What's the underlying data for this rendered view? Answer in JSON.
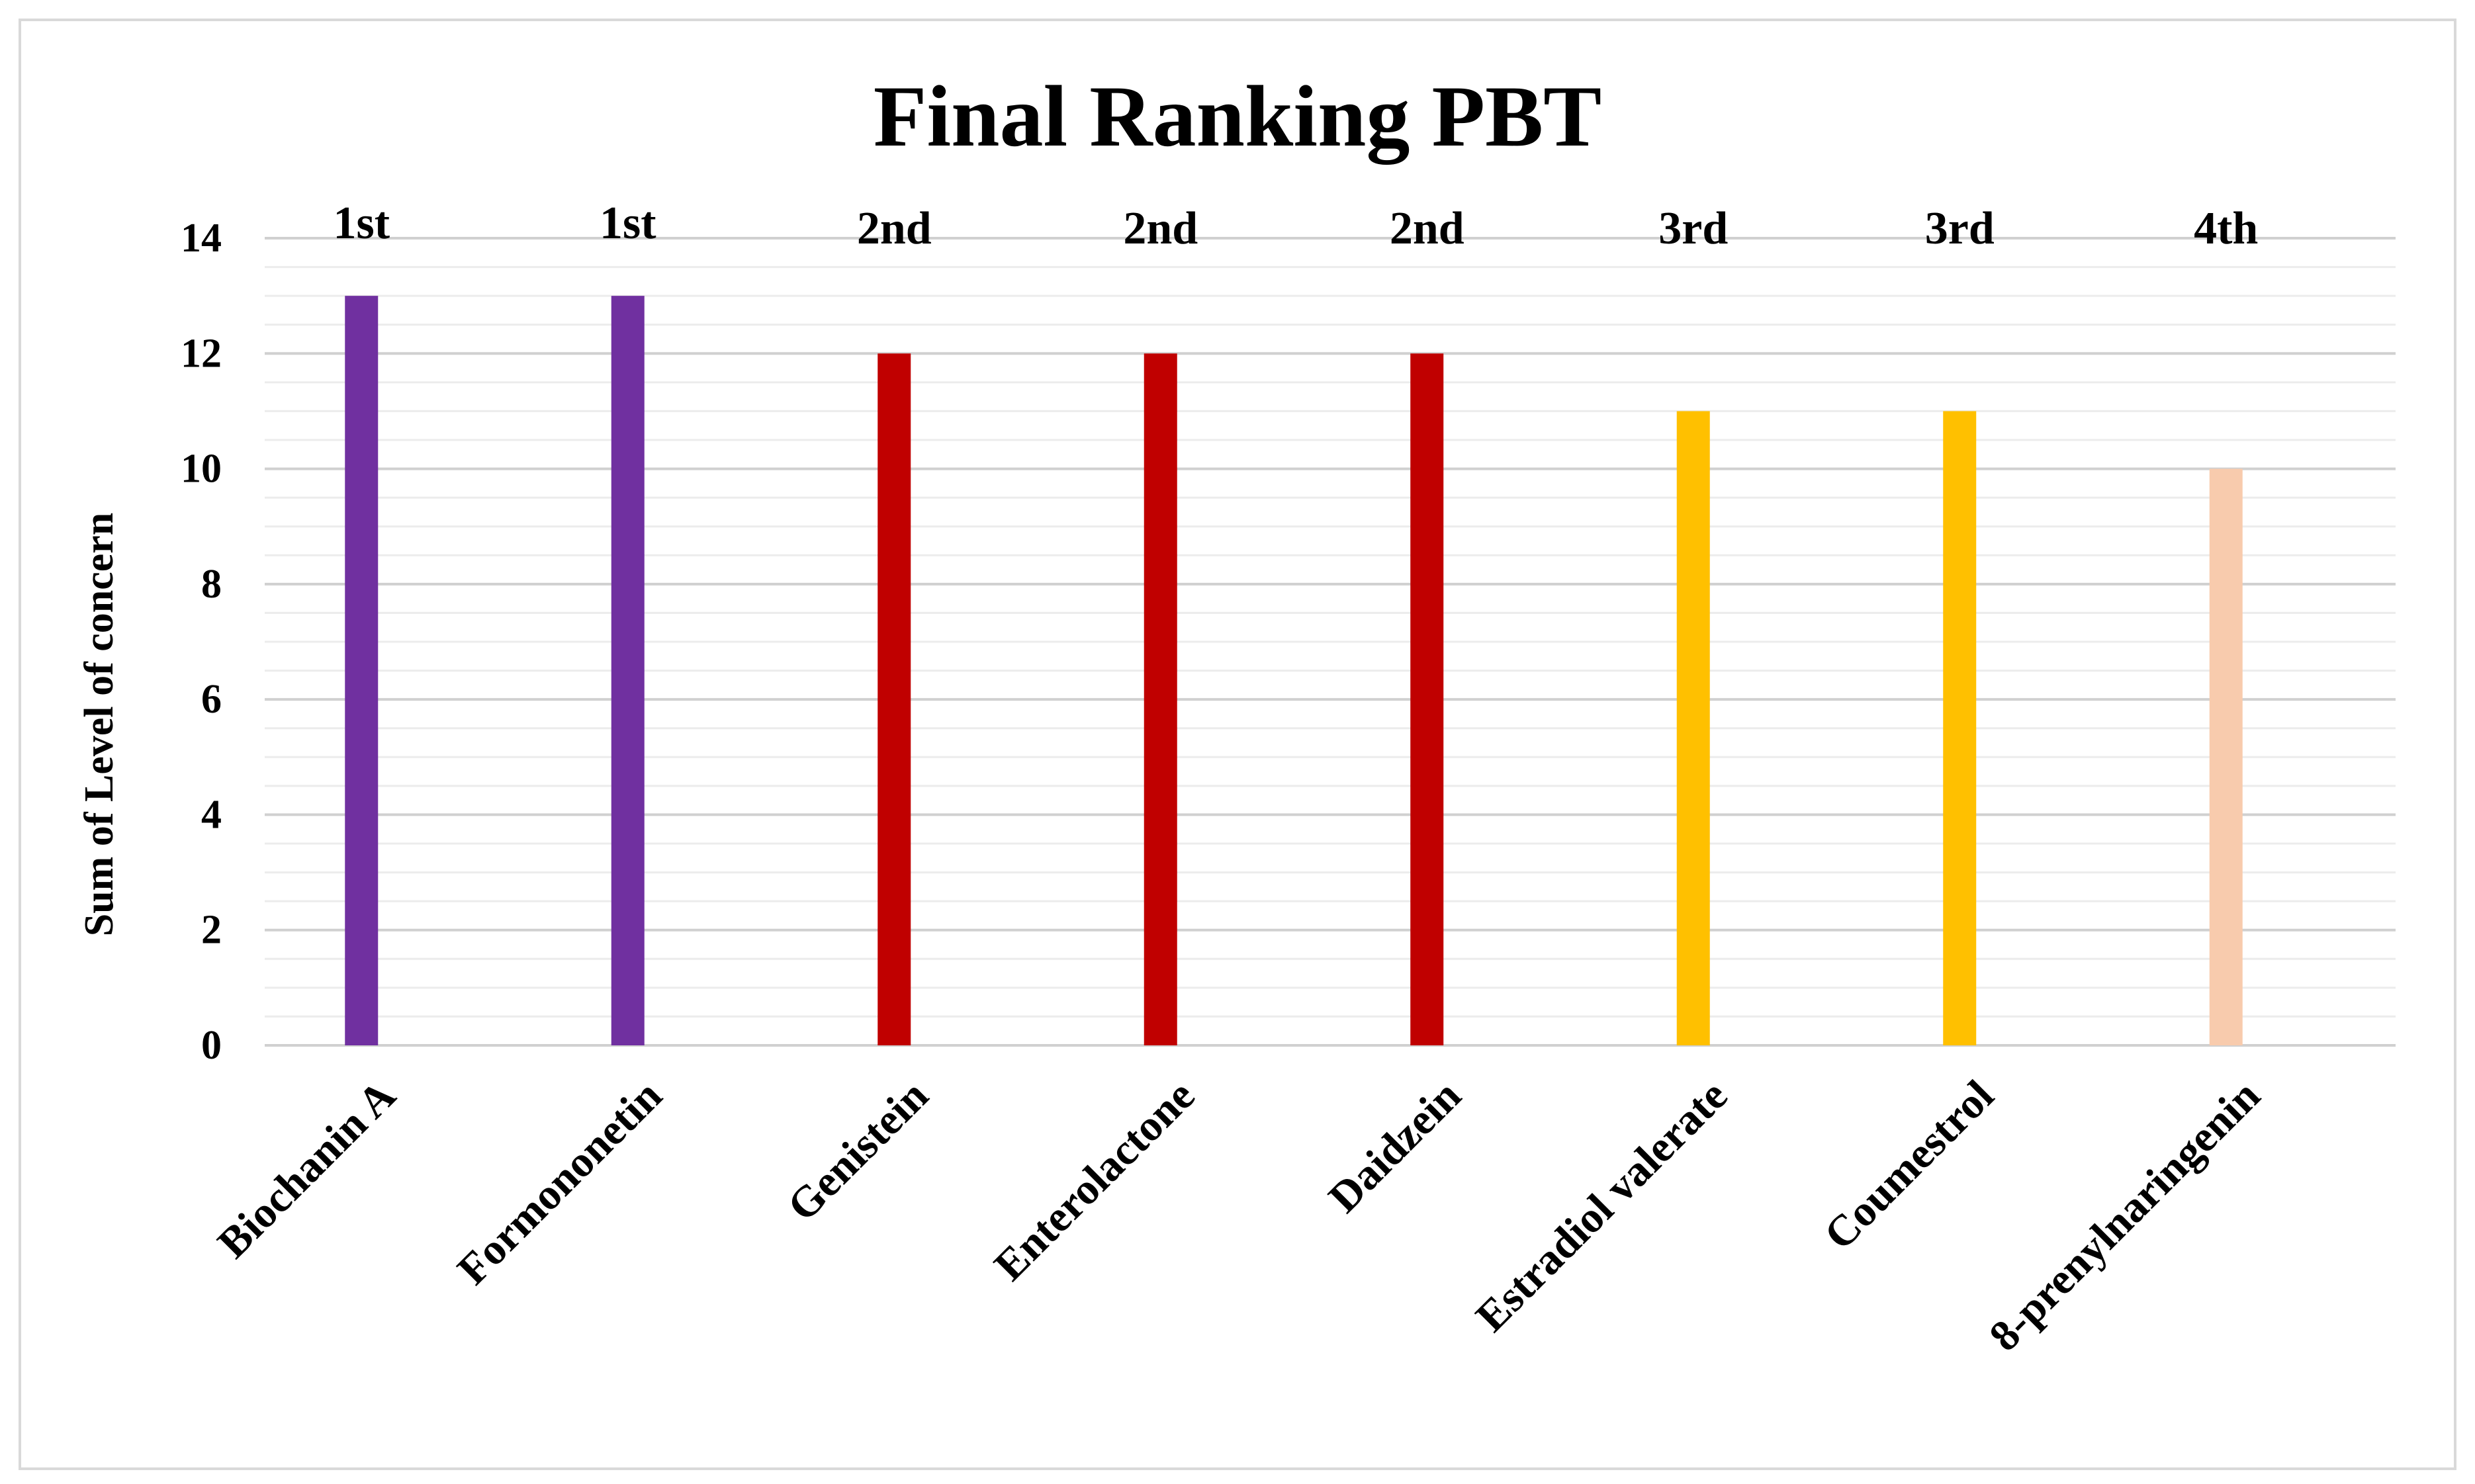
{
  "chart_data": {
    "type": "bar",
    "title": "Final Ranking PBT",
    "xlabel": "",
    "ylabel": "Sum of Level of concern",
    "ylim": [
      0,
      14
    ],
    "yticks": [
      0,
      2,
      4,
      6,
      8,
      10,
      12,
      14
    ],
    "grid": true,
    "legend": "none",
    "categories": [
      "Biochanin A",
      "Formononetin",
      "Genistein",
      "Enterolactone",
      "Daidzein",
      "Estradiol valerate",
      "Coumestrol",
      "8-prenylnaringenin"
    ],
    "values": [
      13,
      13,
      12,
      12,
      12,
      11,
      11,
      10
    ],
    "ranks": [
      "1st",
      "1st",
      "2nd",
      "2nd",
      "2nd",
      "3rd",
      "3rd",
      "4th"
    ],
    "colors": [
      "#7030A0",
      "#7030A0",
      "#C00000",
      "#C00000",
      "#C00000",
      "#FFC000",
      "#FFC000",
      "#F8CBAD"
    ]
  }
}
